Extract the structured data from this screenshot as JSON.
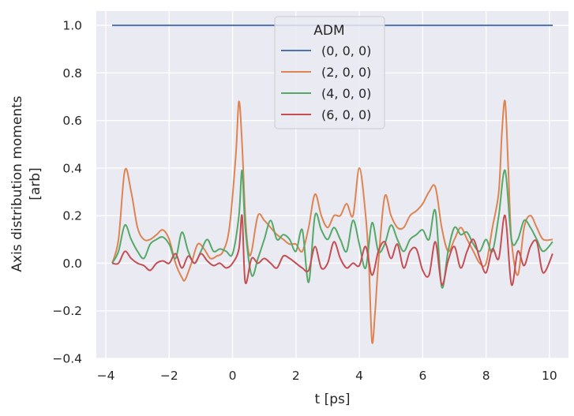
{
  "chart_data": {
    "type": "line",
    "title": "",
    "xlabel": "t [ps]",
    "ylabel": "Axis distribution moments",
    "ylabel_line2": "[arb]",
    "xlim": [
      -4.3,
      10.6
    ],
    "ylim": [
      -0.4,
      1.06
    ],
    "xticks": [
      -4,
      -2,
      0,
      2,
      4,
      6,
      8,
      10
    ],
    "yticks": [
      -0.4,
      -0.2,
      0.0,
      0.2,
      0.4,
      0.6,
      0.8,
      1.0
    ],
    "xtick_labels": [
      "−4",
      "−2",
      "0",
      "2",
      "4",
      "6",
      "8",
      "10"
    ],
    "ytick_labels": [
      "−0.4",
      "−0.2",
      "0.0",
      "0.2",
      "0.4",
      "0.6",
      "0.8",
      "1.0"
    ],
    "grid": true,
    "legend": {
      "title": "ADM",
      "placement": "top-center"
    },
    "colors": {
      "background": "#eaeaf2",
      "grid": "#ffffff"
    },
    "series": [
      {
        "name": "(0, 0, 0)",
        "color": "#4c72b0",
        "x": [
          -3.8,
          10.1
        ],
        "y": [
          1.0,
          1.0
        ]
      },
      {
        "name": "(2, 0, 0)",
        "color": "#dd8452",
        "x": [
          -3.8,
          -3.6,
          -3.4,
          -3.2,
          -3.0,
          -2.8,
          -2.6,
          -2.4,
          -2.2,
          -2.0,
          -1.8,
          -1.6,
          -1.5,
          -1.3,
          -1.1,
          -0.9,
          -0.7,
          -0.5,
          -0.3,
          -0.1,
          0.1,
          0.2,
          0.3,
          0.4,
          0.5,
          0.6,
          0.8,
          1.0,
          1.2,
          1.4,
          1.6,
          1.8,
          2.0,
          2.2,
          2.4,
          2.6,
          2.8,
          3.0,
          3.2,
          3.4,
          3.6,
          3.8,
          4.0,
          4.2,
          4.3,
          4.4,
          4.5,
          4.6,
          4.8,
          5.0,
          5.2,
          5.4,
          5.6,
          5.8,
          6.0,
          6.2,
          6.4,
          6.6,
          6.8,
          7.0,
          7.2,
          7.4,
          7.6,
          7.8,
          8.0,
          8.2,
          8.4,
          8.5,
          8.6,
          8.7,
          8.8,
          9.0,
          9.2,
          9.4,
          9.6,
          9.8,
          10.1
        ],
        "y": [
          0.0,
          0.1,
          0.39,
          0.3,
          0.15,
          0.1,
          0.1,
          0.12,
          0.14,
          0.1,
          0.0,
          -0.06,
          -0.07,
          0.0,
          0.08,
          0.06,
          0.02,
          0.03,
          0.05,
          0.15,
          0.45,
          0.68,
          0.5,
          0.2,
          0.05,
          0.05,
          0.2,
          0.18,
          0.15,
          0.12,
          0.1,
          0.08,
          0.08,
          0.05,
          0.15,
          0.29,
          0.2,
          0.15,
          0.2,
          0.2,
          0.25,
          0.2,
          0.4,
          0.2,
          0.0,
          -0.33,
          -0.2,
          0.0,
          0.28,
          0.2,
          0.15,
          0.15,
          0.2,
          0.22,
          0.25,
          0.3,
          0.32,
          0.15,
          0.05,
          0.1,
          0.15,
          0.1,
          0.05,
          0.0,
          0.0,
          0.15,
          0.3,
          0.55,
          0.68,
          0.4,
          0.1,
          -0.05,
          0.15,
          0.2,
          0.15,
          0.1,
          0.1
        ]
      },
      {
        "name": "(4, 0, 0)",
        "color": "#55a868",
        "x": [
          -3.8,
          -3.6,
          -3.4,
          -3.2,
          -3.0,
          -2.8,
          -2.6,
          -2.4,
          -2.2,
          -2.0,
          -1.8,
          -1.6,
          -1.4,
          -1.2,
          -1.0,
          -0.8,
          -0.6,
          -0.4,
          -0.2,
          0.0,
          0.2,
          0.3,
          0.4,
          0.6,
          0.8,
          1.0,
          1.2,
          1.4,
          1.6,
          1.8,
          2.0,
          2.2,
          2.4,
          2.6,
          2.8,
          3.0,
          3.2,
          3.4,
          3.6,
          3.8,
          4.0,
          4.2,
          4.4,
          4.6,
          4.8,
          5.0,
          5.2,
          5.4,
          5.6,
          5.8,
          6.0,
          6.2,
          6.4,
          6.6,
          6.8,
          7.0,
          7.2,
          7.4,
          7.6,
          7.8,
          8.0,
          8.2,
          8.4,
          8.6,
          8.8,
          9.0,
          9.2,
          9.4,
          9.6,
          9.8,
          10.1
        ],
        "y": [
          0.0,
          0.05,
          0.16,
          0.1,
          0.05,
          0.02,
          0.08,
          0.1,
          0.11,
          0.08,
          0.02,
          0.13,
          0.05,
          0.0,
          0.05,
          0.1,
          0.05,
          0.06,
          0.05,
          0.04,
          0.2,
          0.39,
          0.15,
          -0.05,
          0.02,
          0.1,
          0.18,
          0.1,
          0.12,
          0.1,
          0.05,
          0.14,
          -0.08,
          0.2,
          0.14,
          0.1,
          0.15,
          0.1,
          0.05,
          0.18,
          0.08,
          -0.02,
          0.17,
          0.05,
          0.08,
          0.16,
          0.1,
          0.05,
          0.1,
          0.12,
          0.14,
          0.1,
          0.22,
          -0.1,
          0.05,
          0.15,
          0.12,
          0.13,
          0.08,
          0.05,
          0.1,
          0.05,
          0.2,
          0.39,
          0.1,
          0.1,
          0.18,
          0.15,
          0.1,
          0.05,
          0.09
        ]
      },
      {
        "name": "(6, 0, 0)",
        "color": "#c44e52",
        "x": [
          -3.8,
          -3.6,
          -3.4,
          -3.2,
          -3.0,
          -2.8,
          -2.6,
          -2.4,
          -2.2,
          -2.0,
          -1.8,
          -1.6,
          -1.4,
          -1.2,
          -1.0,
          -0.8,
          -0.6,
          -0.4,
          -0.2,
          0.0,
          0.2,
          0.3,
          0.4,
          0.6,
          0.8,
          1.0,
          1.2,
          1.4,
          1.6,
          1.8,
          2.0,
          2.2,
          2.4,
          2.6,
          2.8,
          3.0,
          3.2,
          3.4,
          3.6,
          3.8,
          4.0,
          4.2,
          4.4,
          4.6,
          4.8,
          5.0,
          5.2,
          5.4,
          5.6,
          5.8,
          6.0,
          6.2,
          6.4,
          6.6,
          6.8,
          7.0,
          7.2,
          7.4,
          7.6,
          7.8,
          8.0,
          8.2,
          8.4,
          8.6,
          8.8,
          9.0,
          9.2,
          9.4,
          9.6,
          9.8,
          10.1
        ],
        "y": [
          0.0,
          0.0,
          0.05,
          0.02,
          0.0,
          -0.01,
          -0.03,
          0.0,
          0.01,
          0.0,
          0.04,
          -0.02,
          0.03,
          0.0,
          0.04,
          0.01,
          -0.01,
          0.0,
          -0.02,
          0.0,
          0.06,
          0.2,
          -0.08,
          0.02,
          0.0,
          0.02,
          0.0,
          -0.02,
          0.03,
          0.02,
          0.0,
          -0.02,
          -0.03,
          0.07,
          -0.02,
          0.0,
          0.09,
          0.02,
          -0.02,
          0.0,
          -0.01,
          0.07,
          -0.05,
          0.05,
          0.09,
          0.02,
          0.08,
          -0.02,
          0.05,
          0.06,
          -0.03,
          -0.05,
          0.09,
          -0.09,
          0.01,
          0.07,
          -0.02,
          0.05,
          0.1,
          0.02,
          -0.04,
          0.06,
          0.02,
          0.2,
          -0.09,
          0.05,
          -0.01,
          0.07,
          0.09,
          -0.04,
          0.04
        ]
      }
    ]
  }
}
